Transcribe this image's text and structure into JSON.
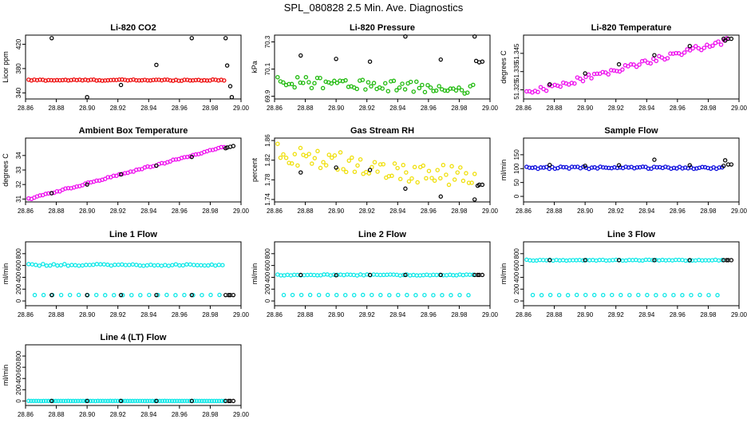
{
  "page": {
    "title": "SPL_080828  2.5 Min. Ave. Diagnostics"
  },
  "colors": {
    "red": "#ee1010",
    "green": "#22bb10",
    "magenta": "#ee10ee",
    "yellow": "#f0e010",
    "blue": "#1010dd",
    "cyan": "#10e8e8",
    "black": "#000000"
  },
  "chart_data": [
    {
      "type": "scatter",
      "title": "Li-820 CO2",
      "ylabel": "Licor ppm",
      "xlim": [
        28.86,
        29.0
      ],
      "ylim": [
        330,
        435
      ],
      "xticks": [
        28.86,
        28.88,
        28.9,
        28.92,
        28.94,
        28.96,
        28.98,
        29.0
      ],
      "yticks": [
        340,
        380,
        420
      ],
      "ytick_labels": [
        "340",
        "380",
        "420"
      ],
      "xtick_labels": [
        "28.86",
        "28.88",
        "28.90",
        "28.92",
        "28.94",
        "28.96",
        "28.98",
        "29.00"
      ],
      "color": "red",
      "series": [
        {
          "name": "main",
          "color": "red",
          "gen": "flat",
          "x0": 28.862,
          "x1": 28.989,
          "n": 70,
          "base": 361,
          "amp": 1
        }
      ],
      "extra": {
        "color": "black",
        "x": [
          28.877,
          28.9,
          28.922,
          28.945,
          28.968,
          28.99,
          28.991,
          28.993,
          28.994
        ],
        "y": [
          430,
          333,
          353,
          386,
          430,
          430,
          385,
          351,
          333
        ]
      }
    },
    {
      "type": "scatter",
      "title": "Li-820 Pressure",
      "ylabel": "kPa",
      "xlim": [
        28.86,
        29.0
      ],
      "ylim": [
        69.88,
        70.35
      ],
      "xticks": [
        28.86,
        28.88,
        28.9,
        28.92,
        28.94,
        28.96,
        28.98,
        29.0
      ],
      "yticks": [
        69.9,
        70.1,
        70.3
      ],
      "ytick_labels": [
        "69.9",
        "70.1",
        "70.3"
      ],
      "xtick_labels": [
        "28.86",
        "28.88",
        "28.90",
        "28.92",
        "28.94",
        "28.96",
        "28.98",
        "29.00"
      ],
      "color": "green",
      "series": [
        {
          "name": "main",
          "color": "green",
          "gen": "trend",
          "x0": 28.862,
          "x1": 28.989,
          "n": 70,
          "y0": 70.01,
          "y1": 69.95,
          "amp": 0.04
        }
      ],
      "extra": {
        "color": "black",
        "x": [
          28.877,
          28.9,
          28.922,
          28.945,
          28.968,
          28.99,
          28.991,
          28.993,
          28.995
        ],
        "y": [
          70.2,
          70.175,
          70.155,
          70.34,
          70.17,
          70.34,
          70.16,
          70.15,
          70.155
        ]
      }
    },
    {
      "type": "scatter",
      "title": "Li-820 Temperature",
      "ylabel": "degrees C",
      "xlim": [
        28.86,
        29.0
      ],
      "ylim": [
        51.32,
        51.355
      ],
      "xticks": [
        28.86,
        28.88,
        28.9,
        28.92,
        28.94,
        28.96,
        28.98,
        29.0
      ],
      "yticks": [
        51.325,
        51.335,
        51.345
      ],
      "ytick_labels": [
        "51.325",
        "51.335",
        "51.345"
      ],
      "xtick_labels": [
        "28.86",
        "28.88",
        "28.90",
        "28.92",
        "28.94",
        "28.96",
        "28.98",
        "29.00"
      ],
      "color": "magenta",
      "series": [
        {
          "name": "main",
          "color": "magenta",
          "gen": "trend",
          "x0": 28.862,
          "x1": 28.992,
          "n": 72,
          "y0": 51.323,
          "y1": 51.352,
          "amp": 0.0015
        }
      ],
      "extra": {
        "color": "black",
        "x": [
          28.877,
          28.9,
          28.922,
          28.945,
          28.968,
          28.99,
          28.991,
          28.993,
          28.995
        ],
        "y": [
          51.328,
          51.334,
          51.339,
          51.344,
          51.349,
          51.353,
          51.352,
          51.353,
          51.353
        ]
      }
    },
    {
      "type": "scatter",
      "title": "Ambient Box Temperature",
      "ylabel": "degrees C",
      "xlim": [
        28.86,
        29.0
      ],
      "ylim": [
        30.8,
        35.2
      ],
      "xticks": [
        28.86,
        28.88,
        28.9,
        28.92,
        28.94,
        28.96,
        28.98,
        29.0
      ],
      "yticks": [
        31,
        32,
        33,
        34
      ],
      "ytick_labels": [
        "31",
        "32",
        "33",
        "34"
      ],
      "xtick_labels": [
        "28.86",
        "28.88",
        "28.90",
        "28.92",
        "28.94",
        "28.96",
        "28.98",
        "29.00"
      ],
      "color": "magenta",
      "series": [
        {
          "name": "main",
          "color": "magenta",
          "gen": "trend",
          "x0": 28.862,
          "x1": 28.989,
          "n": 70,
          "y0": 31.0,
          "y1": 34.6,
          "amp": 0.05
        }
      ],
      "extra": {
        "color": "black",
        "x": [
          28.877,
          28.9,
          28.922,
          28.945,
          28.968,
          28.99,
          28.991,
          28.993,
          28.995
        ],
        "y": [
          31.4,
          32.0,
          32.7,
          33.3,
          33.9,
          34.5,
          34.55,
          34.6,
          34.65
        ]
      }
    },
    {
      "type": "scatter",
      "title": "Gas Stream RH",
      "ylabel": "percent",
      "xlim": [
        28.86,
        29.0
      ],
      "ylim": [
        1.735,
        1.865
      ],
      "xticks": [
        28.86,
        28.88,
        28.9,
        28.92,
        28.94,
        28.96,
        28.98,
        29.0
      ],
      "yticks": [
        1.74,
        1.78,
        1.82,
        1.86
      ],
      "ytick_labels": [
        "1.74",
        "1.78",
        "1.82",
        "1.86"
      ],
      "xtick_labels": [
        "28.86",
        "28.88",
        "28.90",
        "28.92",
        "28.94",
        "28.96",
        "28.98",
        "29.00"
      ],
      "color": "yellow",
      "series": [
        {
          "name": "main",
          "color": "yellow",
          "gen": "trend",
          "x0": 28.862,
          "x1": 28.99,
          "n": 70,
          "y0": 1.835,
          "y1": 1.78,
          "amp": 0.022
        }
      ],
      "extra": {
        "color": "black",
        "x": [
          28.877,
          28.9,
          28.922,
          28.945,
          28.968,
          28.99,
          28.992,
          28.993,
          28.995
        ],
        "y": [
          1.795,
          1.805,
          1.8,
          1.762,
          1.746,
          1.74,
          1.768,
          1.77,
          1.77
        ]
      }
    },
    {
      "type": "scatter",
      "title": "Sample Flow",
      "ylabel": "ml/min",
      "xlim": [
        28.86,
        29.0
      ],
      "ylim": [
        -20,
        210
      ],
      "xticks": [
        28.86,
        28.88,
        28.9,
        28.92,
        28.94,
        28.96,
        28.98,
        29.0
      ],
      "yticks": [
        0,
        50,
        100,
        150
      ],
      "ytick_labels": [
        "0",
        "50",
        "100",
        "150"
      ],
      "xtick_labels": [
        "28.86",
        "28.88",
        "28.90",
        "28.92",
        "28.94",
        "28.96",
        "28.98",
        "29.00"
      ],
      "color": "blue",
      "series": [
        {
          "name": "main",
          "color": "blue",
          "gen": "flat",
          "x0": 28.862,
          "x1": 28.989,
          "n": 70,
          "base": 103,
          "amp": 4
        }
      ],
      "extra": {
        "color": "black",
        "x": [
          28.877,
          28.9,
          28.922,
          28.945,
          28.968,
          28.99,
          28.991,
          28.993,
          28.995
        ],
        "y": [
          113,
          110,
          112,
          132,
          112,
          110,
          130,
          115,
          115
        ]
      }
    },
    {
      "type": "scatter",
      "title": "Line 1 Flow",
      "ylabel": "ml/min",
      "xlim": [
        28.86,
        29.0
      ],
      "ylim": [
        -80,
        1000
      ],
      "xticks": [
        28.86,
        28.88,
        28.9,
        28.92,
        28.94,
        28.96,
        28.98,
        29.0
      ],
      "yticks": [
        0,
        200,
        400,
        600,
        800
      ],
      "ytick_labels": [
        "0",
        "200",
        "400",
        "600",
        "800"
      ],
      "xtick_labels": [
        "28.86",
        "28.88",
        "28.90",
        "28.92",
        "28.94",
        "28.96",
        "28.98",
        "29.00"
      ],
      "color": "cyan",
      "series": [
        {
          "name": "high",
          "color": "cyan",
          "gen": "flat",
          "x0": 28.862,
          "x1": 28.988,
          "n": 55,
          "base": 610,
          "amp": 15
        },
        {
          "name": "low",
          "color": "cyan",
          "gen": "flat",
          "x0": 28.866,
          "x1": 28.986,
          "n": 22,
          "base": 100,
          "amp": 2
        }
      ],
      "extra": {
        "color": "black",
        "x": [
          28.877,
          28.9,
          28.922,
          28.945,
          28.968,
          28.99,
          28.992,
          28.993,
          28.995
        ],
        "y": [
          100,
          100,
          100,
          100,
          100,
          100,
          100,
          100,
          100
        ]
      }
    },
    {
      "type": "scatter",
      "title": "Line 2 Flow",
      "ylabel": "ml/min",
      "xlim": [
        28.86,
        29.0
      ],
      "ylim": [
        -80,
        1000
      ],
      "xticks": [
        28.86,
        28.88,
        28.9,
        28.92,
        28.94,
        28.96,
        28.98,
        29.0
      ],
      "yticks": [
        0,
        200,
        400,
        600,
        800
      ],
      "ytick_labels": [
        "0",
        "200",
        "400",
        "600",
        "800"
      ],
      "xtick_labels": [
        "28.86",
        "28.88",
        "28.90",
        "28.92",
        "28.94",
        "28.96",
        "28.98",
        "29.00"
      ],
      "color": "cyan",
      "series": [
        {
          "name": "high",
          "color": "cyan",
          "gen": "flat",
          "x0": 28.862,
          "x1": 28.989,
          "n": 60,
          "base": 440,
          "amp": 8
        },
        {
          "name": "low",
          "color": "cyan",
          "gen": "flat",
          "x0": 28.866,
          "x1": 28.986,
          "n": 22,
          "base": 100,
          "amp": 2
        }
      ],
      "extra": {
        "color": "black",
        "x": [
          28.877,
          28.9,
          28.922,
          28.945,
          28.968,
          28.99,
          28.992,
          28.993,
          28.995
        ],
        "y": [
          440,
          435,
          440,
          440,
          440,
          440,
          440,
          440,
          440
        ]
      }
    },
    {
      "type": "scatter",
      "title": "Line 3 Flow",
      "ylabel": "ml/min",
      "xlim": [
        28.86,
        29.0
      ],
      "ylim": [
        -80,
        1000
      ],
      "xticks": [
        28.86,
        28.88,
        28.9,
        28.92,
        28.94,
        28.96,
        28.98,
        29.0
      ],
      "yticks": [
        0,
        200,
        400,
        600,
        800
      ],
      "ytick_labels": [
        "0",
        "200",
        "400",
        "600",
        "800"
      ],
      "xtick_labels": [
        "28.86",
        "28.88",
        "28.90",
        "28.92",
        "28.94",
        "28.96",
        "28.98",
        "29.00"
      ],
      "color": "cyan",
      "series": [
        {
          "name": "high",
          "color": "cyan",
          "gen": "flat",
          "x0": 28.862,
          "x1": 28.989,
          "n": 60,
          "base": 690,
          "amp": 8
        },
        {
          "name": "low",
          "color": "cyan",
          "gen": "flat",
          "x0": 28.866,
          "x1": 28.986,
          "n": 22,
          "base": 100,
          "amp": 2
        }
      ],
      "extra": {
        "color": "black",
        "x": [
          28.877,
          28.9,
          28.922,
          28.945,
          28.968,
          28.99,
          28.992,
          28.993,
          28.995
        ],
        "y": [
          690,
          690,
          690,
          690,
          690,
          690,
          690,
          690,
          690
        ]
      }
    },
    {
      "type": "scatter",
      "title": "Line 4 (LT) Flow",
      "ylabel": "ml/min",
      "xlim": [
        28.86,
        29.0
      ],
      "ylim": [
        -80,
        1000
      ],
      "xticks": [
        28.86,
        28.88,
        28.9,
        28.92,
        28.94,
        28.96,
        28.98,
        29.0
      ],
      "yticks": [
        0,
        200,
        400,
        600,
        800
      ],
      "ytick_labels": [
        "0",
        "200",
        "400",
        "600",
        "800"
      ],
      "xtick_labels": [
        "28.86",
        "28.88",
        "28.90",
        "28.92",
        "28.94",
        "28.96",
        "28.98",
        "29.00"
      ],
      "color": "cyan",
      "series": [
        {
          "name": "main",
          "color": "cyan",
          "gen": "flat",
          "x0": 28.862,
          "x1": 28.989,
          "n": 80,
          "base": 0,
          "amp": 1
        }
      ],
      "extra": {
        "color": "black",
        "x": [
          28.877,
          28.9,
          28.922,
          28.945,
          28.968,
          28.99,
          28.992,
          28.993,
          28.995
        ],
        "y": [
          0,
          0,
          0,
          0,
          0,
          0,
          0,
          0,
          0
        ]
      }
    }
  ]
}
